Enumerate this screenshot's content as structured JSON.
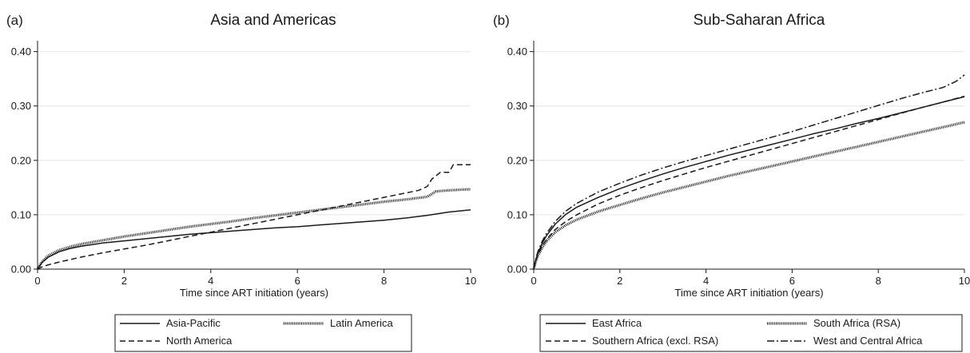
{
  "chart_data": [
    {
      "type": "line",
      "panel_label": "(a)",
      "title": "Asia and Americas",
      "xlabel": "Time since ART initiation (years)",
      "ylabel": "",
      "xlim": [
        0,
        10
      ],
      "ylim": [
        0,
        0.42
      ],
      "xticks": [
        "0",
        "2",
        "4",
        "6",
        "8",
        "10"
      ],
      "yticks": [
        "0.00",
        "0.10",
        "0.20",
        "0.30",
        "0.40"
      ],
      "grid": "horizontal",
      "legend_position": "bottom",
      "series": [
        {
          "name": "Asia-Pacific",
          "line_style": "solid",
          "color": "#1a1a1a",
          "x": [
            0,
            0.1,
            0.25,
            0.5,
            0.75,
            1,
            1.5,
            2,
            2.5,
            3,
            3.5,
            4,
            4.5,
            5,
            5.5,
            6,
            6.5,
            7,
            7.5,
            8,
            8.5,
            9,
            9.5,
            10
          ],
          "values": [
            0,
            0.012,
            0.022,
            0.032,
            0.038,
            0.042,
            0.048,
            0.052,
            0.056,
            0.06,
            0.064,
            0.067,
            0.07,
            0.073,
            0.076,
            0.078,
            0.081,
            0.084,
            0.087,
            0.09,
            0.094,
            0.099,
            0.105,
            0.109
          ]
        },
        {
          "name": "Latin America",
          "line_style": "dotted",
          "color": "#1a1a1a",
          "x": [
            0,
            0.1,
            0.25,
            0.5,
            0.75,
            1,
            1.5,
            2,
            2.5,
            3,
            3.5,
            4,
            4.5,
            5,
            5.5,
            6,
            6.5,
            7,
            7.5,
            8,
            8.5,
            9,
            9.2,
            9.5,
            10
          ],
          "values": [
            0,
            0.013,
            0.025,
            0.035,
            0.041,
            0.046,
            0.053,
            0.06,
            0.066,
            0.072,
            0.078,
            0.083,
            0.088,
            0.094,
            0.099,
            0.104,
            0.109,
            0.114,
            0.119,
            0.124,
            0.128,
            0.133,
            0.143,
            0.145,
            0.147
          ]
        },
        {
          "name": "North America",
          "line_style": "dashed",
          "color": "#1a1a1a",
          "x": [
            0,
            0.1,
            0.25,
            0.5,
            1,
            1.5,
            2,
            2.5,
            3,
            3.5,
            4,
            4.5,
            5,
            5.5,
            6,
            6.5,
            7,
            7.5,
            8,
            8.5,
            8.8,
            9.0,
            9.1,
            9.3,
            9.5,
            9.6,
            10
          ],
          "values": [
            0,
            0.004,
            0.008,
            0.013,
            0.022,
            0.03,
            0.037,
            0.044,
            0.052,
            0.06,
            0.068,
            0.076,
            0.084,
            0.092,
            0.1,
            0.108,
            0.116,
            0.124,
            0.132,
            0.14,
            0.145,
            0.152,
            0.165,
            0.178,
            0.178,
            0.192,
            0.192
          ]
        }
      ]
    },
    {
      "type": "line",
      "panel_label": "(b)",
      "title": "Sub-Saharan Africa",
      "xlabel": "Time since ART initiation (years)",
      "ylabel": "",
      "xlim": [
        0,
        10
      ],
      "ylim": [
        0,
        0.42
      ],
      "xticks": [
        "0",
        "2",
        "4",
        "6",
        "8",
        "10"
      ],
      "yticks": [
        "0.00",
        "0.10",
        "0.20",
        "0.30",
        "0.40"
      ],
      "grid": "horizontal",
      "legend_position": "bottom",
      "series": [
        {
          "name": "East Africa",
          "line_style": "solid",
          "color": "#1a1a1a",
          "x": [
            0,
            0.05,
            0.1,
            0.2,
            0.3,
            0.5,
            0.75,
            1,
            1.5,
            2,
            2.5,
            3,
            3.5,
            4,
            4.5,
            5,
            5.5,
            6,
            6.5,
            7,
            7.5,
            8,
            8.5,
            9,
            9.5,
            10
          ],
          "values": [
            0,
            0.018,
            0.03,
            0.048,
            0.062,
            0.083,
            0.101,
            0.114,
            0.132,
            0.148,
            0.162,
            0.175,
            0.187,
            0.198,
            0.209,
            0.219,
            0.229,
            0.239,
            0.249,
            0.258,
            0.268,
            0.277,
            0.287,
            0.297,
            0.307,
            0.317
          ]
        },
        {
          "name": "South Africa (RSA)",
          "line_style": "dotted",
          "color": "#1a1a1a",
          "x": [
            0,
            0.05,
            0.1,
            0.2,
            0.3,
            0.5,
            0.75,
            1,
            1.5,
            2,
            2.5,
            3,
            3.5,
            4,
            4.5,
            5,
            5.5,
            6,
            6.5,
            7,
            7.5,
            8,
            8.5,
            9,
            9.5,
            10
          ],
          "values": [
            0,
            0.015,
            0.025,
            0.04,
            0.052,
            0.068,
            0.081,
            0.091,
            0.106,
            0.118,
            0.13,
            0.141,
            0.151,
            0.161,
            0.171,
            0.18,
            0.189,
            0.198,
            0.207,
            0.216,
            0.225,
            0.234,
            0.243,
            0.252,
            0.261,
            0.27
          ]
        },
        {
          "name": "Southern Africa (excl. RSA)",
          "line_style": "dashed",
          "color": "#1a1a1a",
          "x": [
            0,
            0.05,
            0.1,
            0.2,
            0.3,
            0.5,
            0.75,
            1,
            1.5,
            2,
            2.5,
            3,
            3.5,
            4,
            4.5,
            5,
            5.5,
            6,
            6.5,
            7,
            7.5,
            8,
            8.5,
            9,
            9.5,
            10
          ],
          "values": [
            0,
            0.016,
            0.027,
            0.043,
            0.055,
            0.073,
            0.088,
            0.1,
            0.12,
            0.136,
            0.15,
            0.163,
            0.175,
            0.187,
            0.198,
            0.209,
            0.22,
            0.231,
            0.242,
            0.253,
            0.264,
            0.275,
            0.286,
            0.297,
            0.307,
            0.318
          ]
        },
        {
          "name": "West and Central Africa",
          "line_style": "dashdot",
          "color": "#1a1a1a",
          "x": [
            0,
            0.05,
            0.1,
            0.2,
            0.3,
            0.5,
            0.75,
            1,
            1.5,
            2,
            2.5,
            3,
            3.5,
            4,
            4.5,
            5,
            5.5,
            6,
            6.5,
            7,
            7.5,
            8,
            8.5,
            9,
            9.5,
            9.8,
            10
          ],
          "values": [
            0,
            0.02,
            0.033,
            0.052,
            0.066,
            0.088,
            0.107,
            0.121,
            0.142,
            0.158,
            0.173,
            0.186,
            0.198,
            0.209,
            0.22,
            0.231,
            0.242,
            0.253,
            0.265,
            0.277,
            0.289,
            0.301,
            0.313,
            0.324,
            0.334,
            0.345,
            0.357
          ]
        }
      ]
    }
  ]
}
